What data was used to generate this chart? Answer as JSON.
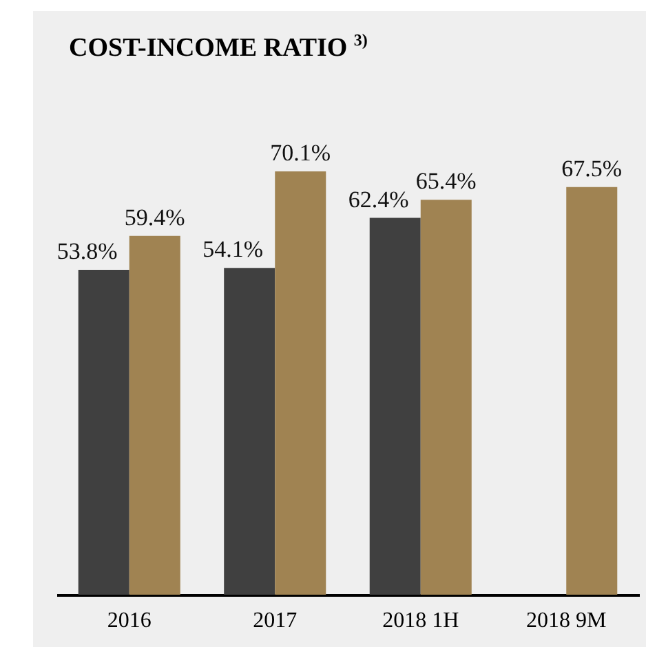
{
  "chart_data": {
    "type": "bar",
    "title": "COST-INCOME RATIO $^{3)}$",
    "categories": [
      "2016",
      "2017",
      "2018 1H",
      "2018 9M"
    ],
    "series": [
      {
        "color": "#404040",
        "values": [
          53.8,
          54.1,
          62.4,
          null
        ],
        "value_labels": [
          "53.8%",
          "54.1%",
          "62.4%",
          null
        ]
      },
      {
        "color": "#a08352",
        "values": [
          59.4,
          70.1,
          65.4,
          67.5
        ],
        "value_labels": [
          "59.4%",
          "70.1%",
          "65.4%",
          "67.5%"
        ]
      }
    ],
    "legend": false
  }
}
